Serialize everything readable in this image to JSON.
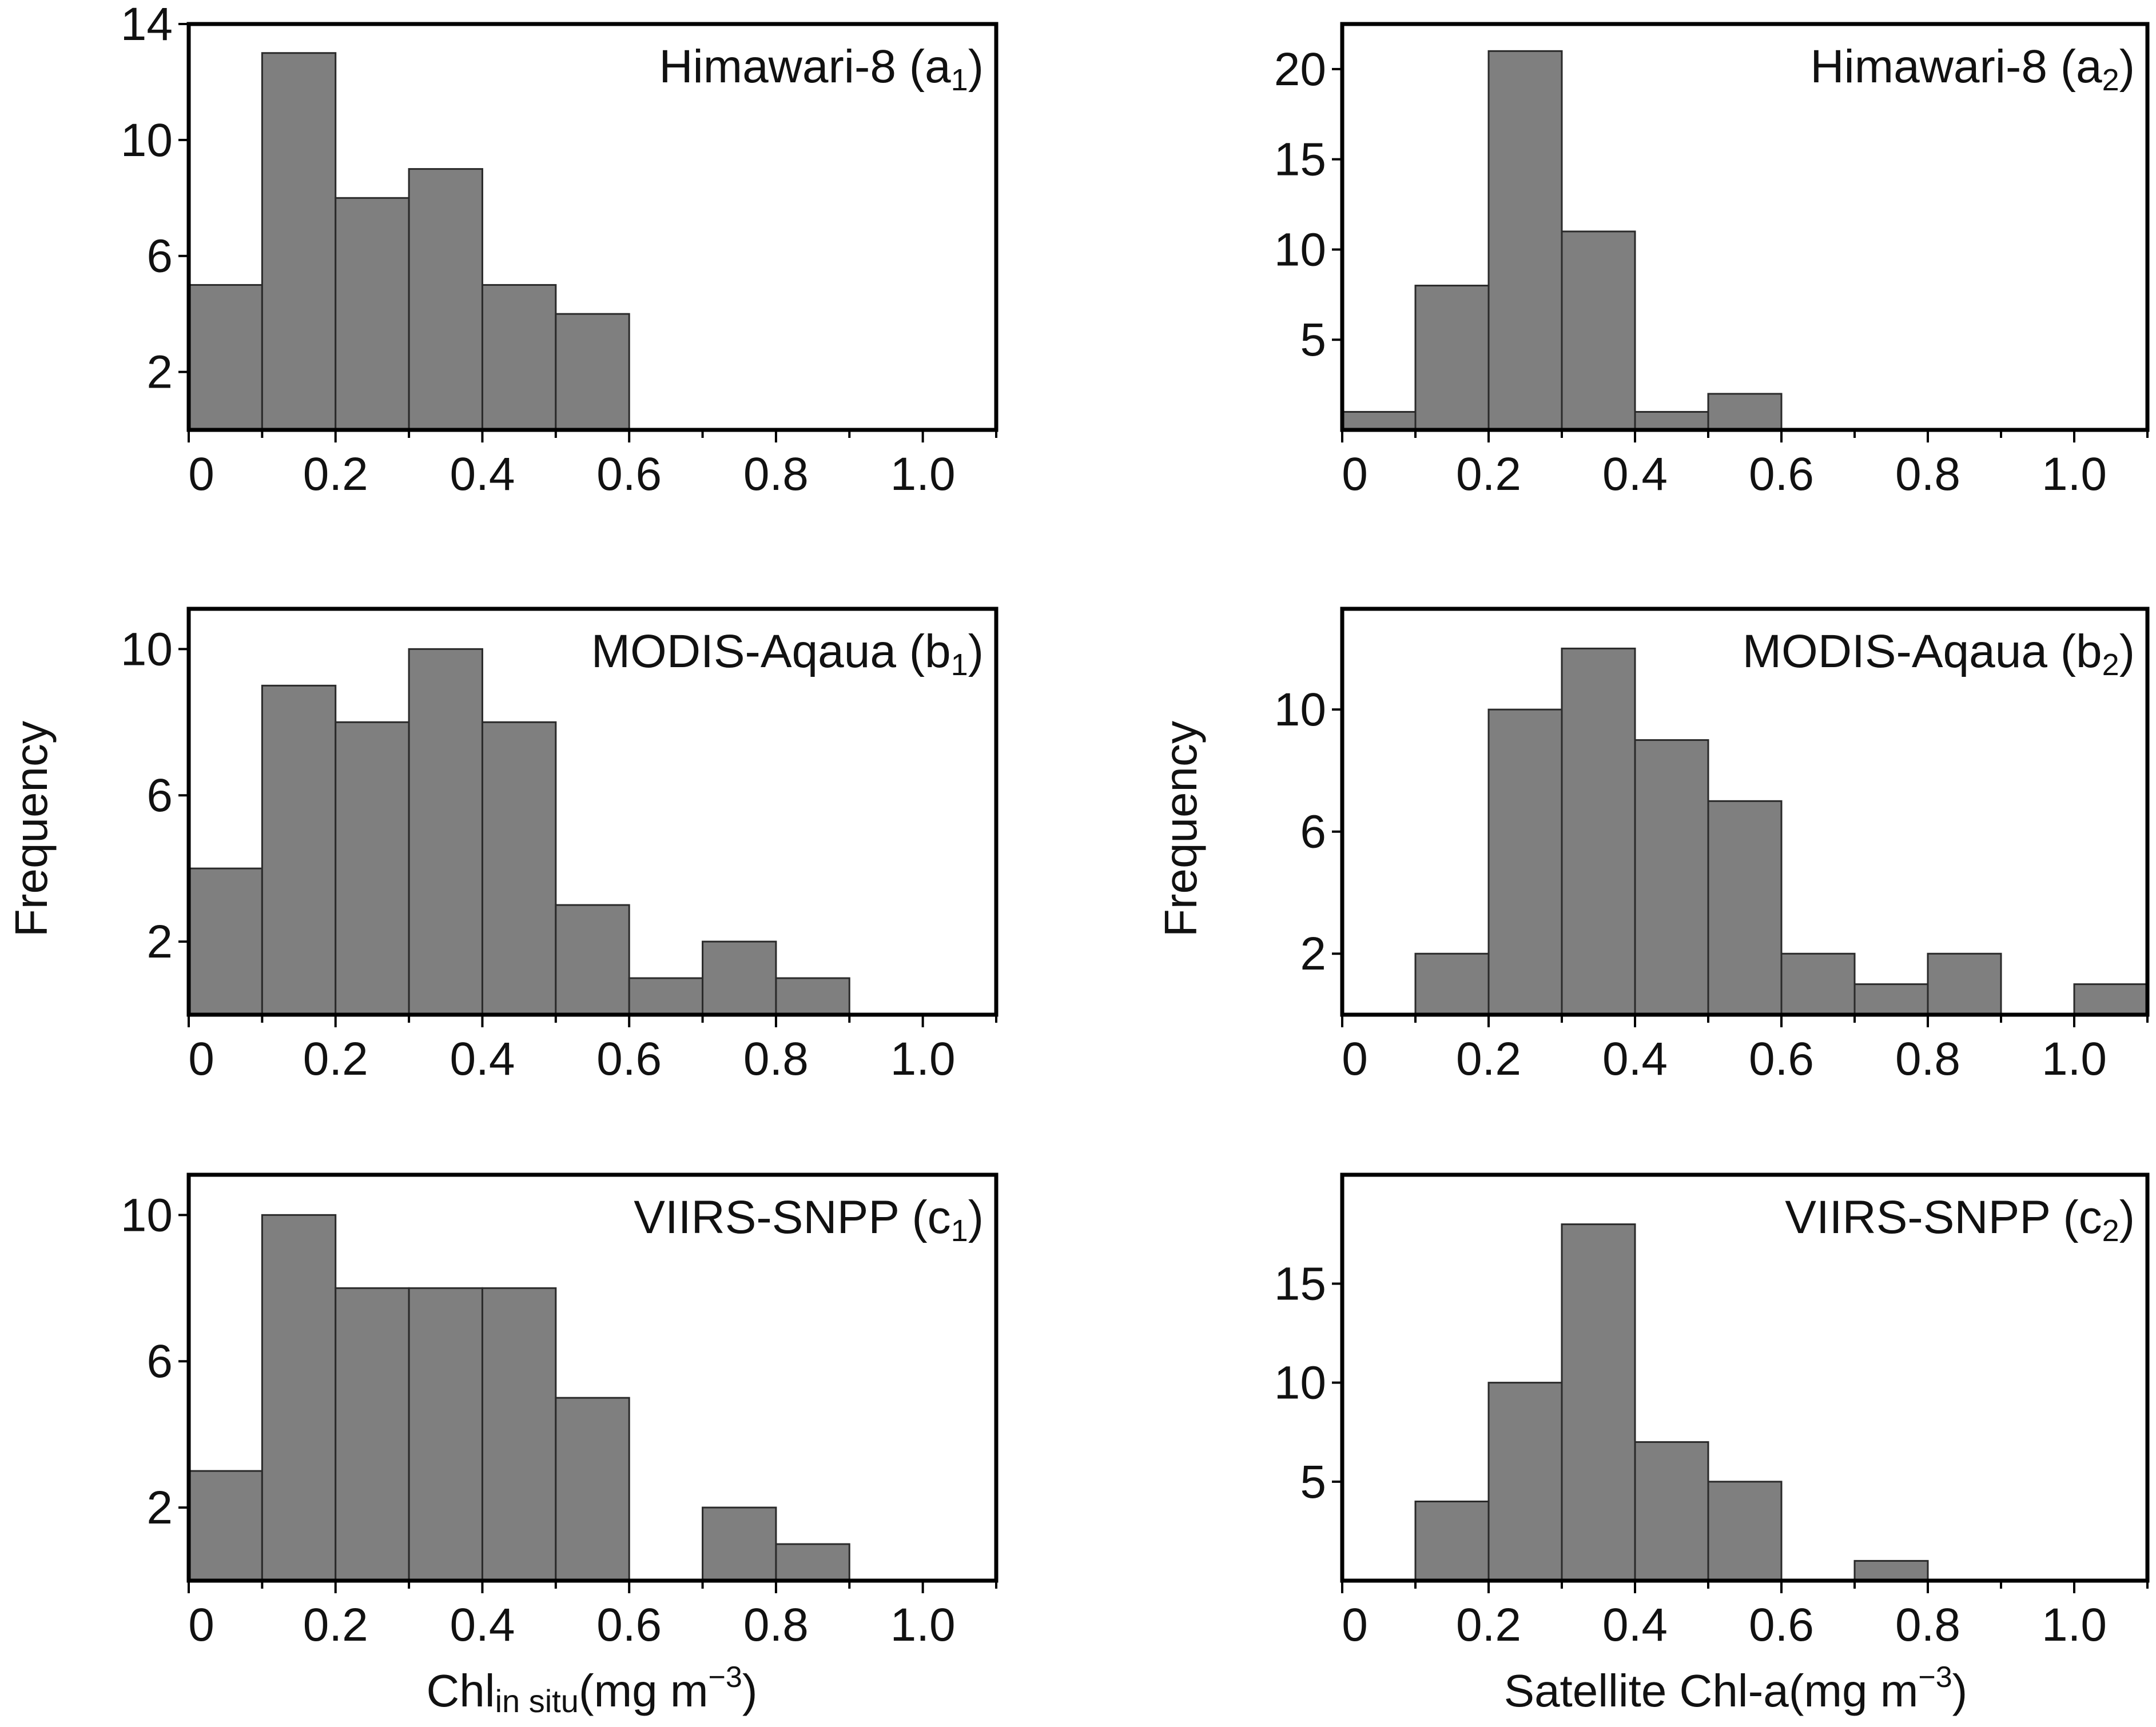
{
  "figure": {
    "left_ylabel": "Frequency",
    "right_ylabel": "Frequency",
    "left_xlabel": {
      "main": "Chl",
      "sub": "in situ",
      "unit_pre": "(mg m",
      "unit_sup": "−3",
      "unit_post": ")"
    },
    "right_xlabel": {
      "main": "Satellite Chl-a",
      "unit_pre": "(mg m",
      "unit_sup": "−3",
      "unit_post": ")"
    }
  },
  "chart_data": [
    {
      "id": "a1",
      "type": "bar",
      "title": "Himawari-8",
      "panel_tag": {
        "letter": "a",
        "sub": "1"
      },
      "bin_edges": [
        0,
        0.1,
        0.2,
        0.3,
        0.4,
        0.5,
        0.6,
        0.7,
        0.8,
        0.9,
        1.0,
        1.1
      ],
      "values": [
        5,
        13,
        8,
        9,
        5,
        4,
        0,
        0,
        0,
        0,
        0
      ],
      "xlim": [
        0,
        1.1
      ],
      "ylim": [
        0,
        14
      ],
      "xticks": [
        "0",
        "0.2",
        "0.4",
        "0.6",
        "0.8",
        "1.0"
      ],
      "xtick_values": [
        0,
        0.2,
        0.4,
        0.6,
        0.8,
        1.0
      ],
      "yticks": [
        "2",
        "6",
        "10",
        "14"
      ],
      "ytick_values": [
        2,
        6,
        10,
        14
      ],
      "xlabel": "",
      "ylabel": ""
    },
    {
      "id": "a2",
      "type": "bar",
      "title": "Himawari-8",
      "panel_tag": {
        "letter": "a",
        "sub": "2"
      },
      "bin_edges": [
        0,
        0.1,
        0.2,
        0.3,
        0.4,
        0.5,
        0.6,
        0.7,
        0.8,
        0.9,
        1.0,
        1.1
      ],
      "values": [
        1,
        8,
        21,
        11,
        1,
        2,
        0,
        0,
        0,
        0,
        0
      ],
      "xlim": [
        0,
        1.1
      ],
      "ylim": [
        0,
        22.5
      ],
      "xticks": [
        "0",
        "0.2",
        "0.4",
        "0.6",
        "0.8",
        "1.0"
      ],
      "xtick_values": [
        0,
        0.2,
        0.4,
        0.6,
        0.8,
        1.0
      ],
      "yticks": [
        "5",
        "10",
        "15",
        "20"
      ],
      "ytick_values": [
        5,
        10,
        15,
        20
      ],
      "xlabel": "",
      "ylabel": ""
    },
    {
      "id": "b1",
      "type": "bar",
      "title": "MODIS-Aqaua",
      "panel_tag": {
        "letter": "b",
        "sub": "1"
      },
      "bin_edges": [
        0,
        0.1,
        0.2,
        0.3,
        0.4,
        0.5,
        0.6,
        0.7,
        0.8,
        0.9,
        1.0,
        1.1
      ],
      "values": [
        4,
        9,
        8,
        10,
        8,
        3,
        1,
        2,
        1,
        0,
        0
      ],
      "xlim": [
        0,
        1.1
      ],
      "ylim": [
        0,
        11.1
      ],
      "xticks": [
        "0",
        "0.2",
        "0.4",
        "0.6",
        "0.8",
        "1.0"
      ],
      "xtick_values": [
        0,
        0.2,
        0.4,
        0.6,
        0.8,
        1.0
      ],
      "yticks": [
        "2",
        "6",
        "10"
      ],
      "ytick_values": [
        2,
        6,
        10
      ],
      "xlabel": "",
      "ylabel": "Frequency"
    },
    {
      "id": "b2",
      "type": "bar",
      "title": "MODIS-Aqaua",
      "panel_tag": {
        "letter": "b",
        "sub": "2"
      },
      "bin_edges": [
        0,
        0.1,
        0.2,
        0.3,
        0.4,
        0.5,
        0.6,
        0.7,
        0.8,
        0.9,
        1.0,
        1.1
      ],
      "values": [
        0,
        2,
        10,
        12,
        9,
        7,
        2,
        1,
        2,
        0,
        1
      ],
      "xlim": [
        0,
        1.1
      ],
      "ylim": [
        0,
        13.3
      ],
      "xticks": [
        "0",
        "0.2",
        "0.4",
        "0.6",
        "0.8",
        "1.0"
      ],
      "xtick_values": [
        0,
        0.2,
        0.4,
        0.6,
        0.8,
        1.0
      ],
      "yticks": [
        "2",
        "6",
        "10"
      ],
      "ytick_values": [
        2,
        6,
        10
      ],
      "xlabel": "",
      "ylabel": "Frequency"
    },
    {
      "id": "c1",
      "type": "bar",
      "title": "VIIRS-SNPP",
      "panel_tag": {
        "letter": "c",
        "sub": "1"
      },
      "bin_edges": [
        0,
        0.1,
        0.2,
        0.3,
        0.4,
        0.5,
        0.6,
        0.7,
        0.8,
        0.9,
        1.0,
        1.1
      ],
      "values": [
        3,
        10,
        8,
        8,
        8,
        5,
        0,
        2,
        1,
        0,
        0
      ],
      "xlim": [
        0,
        1.1
      ],
      "ylim": [
        0,
        11.1
      ],
      "xticks": [
        "0",
        "0.2",
        "0.4",
        "0.6",
        "0.8",
        "1.0"
      ],
      "xtick_values": [
        0,
        0.2,
        0.4,
        0.6,
        0.8,
        1.0
      ],
      "yticks": [
        "2",
        "6",
        "10"
      ],
      "ytick_values": [
        2,
        6,
        10
      ],
      "xlabel": "Chl in situ (mg m−3)",
      "ylabel": ""
    },
    {
      "id": "c2",
      "type": "bar",
      "title": "VIIRS-SNPP",
      "panel_tag": {
        "letter": "c",
        "sub": "2"
      },
      "bin_edges": [
        0,
        0.1,
        0.2,
        0.3,
        0.4,
        0.5,
        0.6,
        0.7,
        0.8,
        0.9,
        1.0,
        1.1
      ],
      "values": [
        0,
        4,
        10,
        18,
        7,
        5,
        0,
        1,
        0,
        0,
        0
      ],
      "xlim": [
        0,
        1.1
      ],
      "ylim": [
        0,
        20.5
      ],
      "xticks": [
        "0",
        "0.2",
        "0.4",
        "0.6",
        "0.8",
        "1.0"
      ],
      "xtick_values": [
        0,
        0.2,
        0.4,
        0.6,
        0.8,
        1.0
      ],
      "yticks": [
        "5",
        "10",
        "15"
      ],
      "ytick_values": [
        5,
        10,
        15
      ],
      "xlabel": "Satellite Chl-a(mg m−3)",
      "ylabel": ""
    }
  ]
}
